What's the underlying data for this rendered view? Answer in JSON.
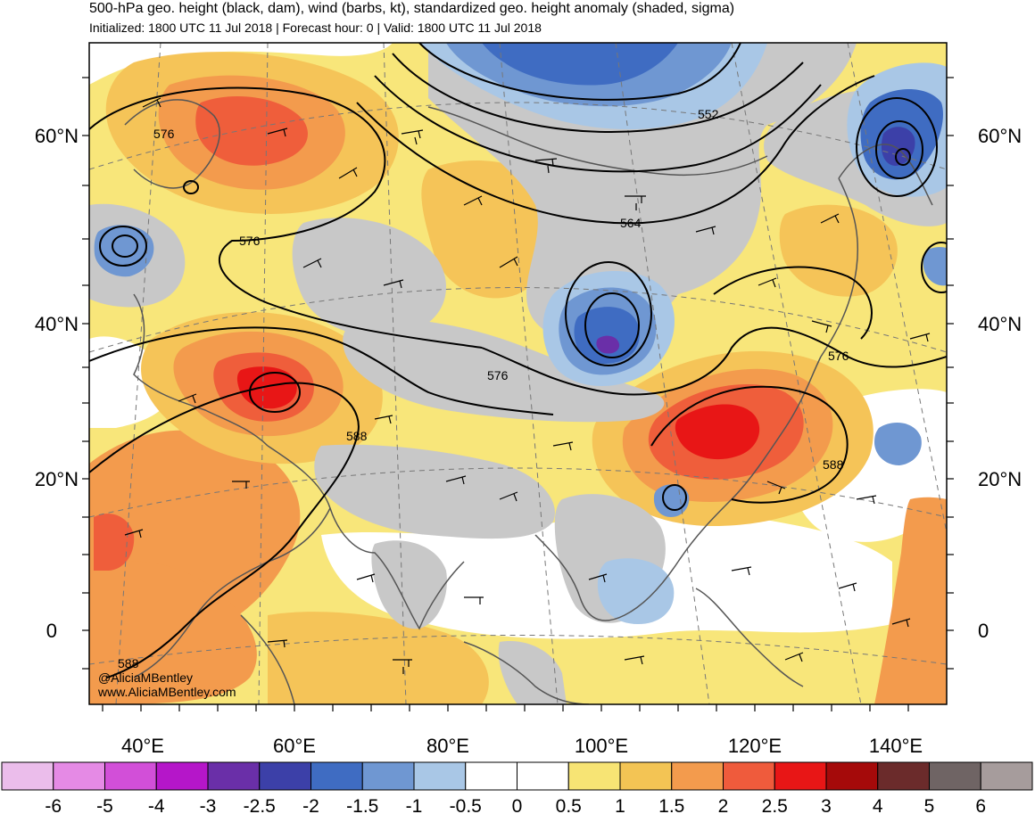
{
  "header": {
    "title": "500-hPa geo. height (black, dam), wind (barbs, kt), standardized geo. height anomaly (shaded, sigma)",
    "subtitle": "Initialized: 1800 UTC 11 Jul 2018 | Forecast hour: 0 | Valid: 1800 UTC 11 Jul 2018"
  },
  "map": {
    "lat_labels": [
      "60°N",
      "40°N",
      "20°N",
      "0"
    ],
    "lon_labels": [
      "40°E",
      "60°E",
      "80°E",
      "100°E",
      "120°E",
      "140°E"
    ],
    "contour_labels": [
      "576",
      "576",
      "552",
      "564",
      "576",
      "576",
      "588",
      "588",
      "588"
    ],
    "credit_line1": "@AliciaMBentley",
    "credit_line2": "www.AliciaMBentley.com"
  },
  "colorbar": {
    "labels": [
      "-6",
      "-5",
      "-4",
      "-3",
      "-2.5",
      "-2",
      "-1.5",
      "-1",
      "-0.5",
      "0",
      "0.5",
      "1",
      "1.5",
      "2",
      "2.5",
      "3",
      "4",
      "5",
      "6"
    ],
    "colors": [
      "#ebbdeb",
      "#e58ae5",
      "#d24fd8",
      "#b516c9",
      "#6a2fa8",
      "#3c40a8",
      "#3f6cc2",
      "#6f97d2",
      "#a9c7e6",
      "#ffffff",
      "#ffffff",
      "#f7e474",
      "#f3c454",
      "#f39b4d",
      "#ef5b3c",
      "#e81616",
      "#a50a0a",
      "#6b2b2b",
      "#6f6464",
      "#a69c9c"
    ]
  },
  "anomaly_colors": {
    "gray": "#c8c8c8",
    "yellow": "#f8e67a",
    "light_orange": "#f5c458",
    "orange": "#f39b4d",
    "red_orange": "#ef5e3b",
    "red": "#e81616",
    "light_blue": "#a9c7e6",
    "mid_blue": "#6f97d2",
    "blue": "#3f6cc2",
    "dark_blue": "#3c40a8",
    "purple": "#6a2fa8"
  }
}
